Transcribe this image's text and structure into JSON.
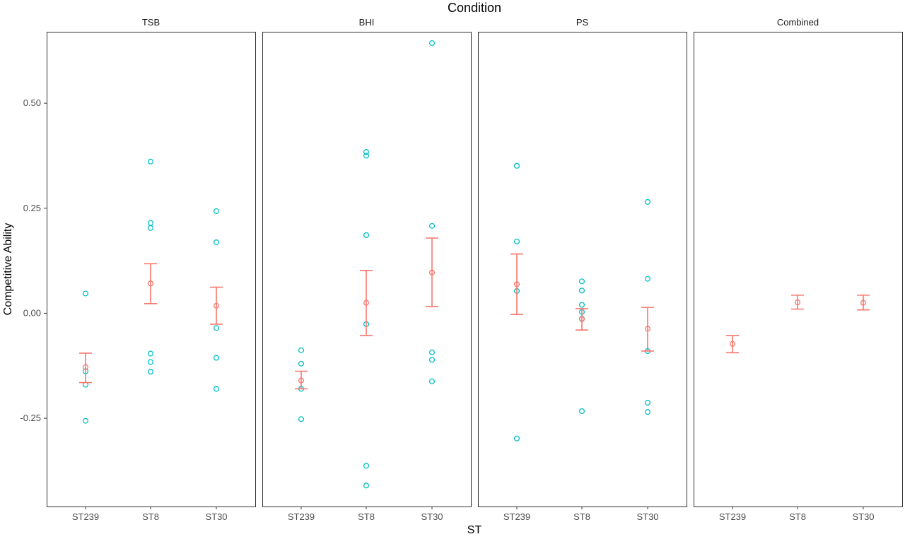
{
  "chart_data": {
    "type": "scatter",
    "title": "Condition",
    "xlabel": "ST",
    "ylabel": "Competitive Ability",
    "ylim": [
      -0.46,
      0.67
    ],
    "y_ticks": [
      {
        "value": -0.25,
        "label": "-0.25"
      },
      {
        "value": 0.0,
        "label": "0.00"
      },
      {
        "value": 0.25,
        "label": "0.25"
      },
      {
        "value": 0.5,
        "label": "0.50"
      }
    ],
    "categories": [
      "ST239",
      "ST8",
      "ST30"
    ],
    "grid": false,
    "legend": "none",
    "colors": {
      "points": "#00BFC4",
      "summary": "#F8766D",
      "panel_border": "#333333",
      "text": "#4d4d4d"
    },
    "panels": [
      {
        "name": "TSB",
        "points": [
          [
            -0.25,
            0.047
          ],
          [
            -0.25,
            -0.138
          ],
          [
            -0.25,
            -0.17
          ],
          [
            -0.25,
            -0.256
          ],
          [
            0,
            0.361
          ],
          [
            0,
            0.215
          ],
          [
            0,
            0.203
          ],
          [
            0,
            -0.096
          ],
          [
            0,
            -0.116
          ],
          [
            0,
            -0.139
          ],
          [
            0.25,
            0.243
          ],
          [
            0.25,
            0.169
          ],
          [
            0.25,
            -0.035
          ],
          [
            0.25,
            -0.106
          ],
          [
            0.25,
            -0.18
          ]
        ],
        "summary": [
          {
            "category": "ST239",
            "mean": -0.128,
            "low": -0.165,
            "high": -0.095
          },
          {
            "category": "ST8",
            "mean": 0.071,
            "low": 0.023,
            "high": 0.118
          },
          {
            "category": "ST30",
            "mean": 0.018,
            "low": -0.026,
            "high": 0.062
          }
        ]
      },
      {
        "name": "BHI",
        "points": [
          [
            -0.25,
            -0.088
          ],
          [
            -0.25,
            -0.12
          ],
          [
            -0.25,
            -0.18
          ],
          [
            -0.25,
            -0.252
          ],
          [
            0,
            0.384
          ],
          [
            0,
            0.375
          ],
          [
            0,
            0.186
          ],
          [
            0,
            -0.026
          ],
          [
            0,
            -0.363
          ],
          [
            0,
            -0.41
          ],
          [
            0.25,
            0.643
          ],
          [
            0.25,
            0.208
          ],
          [
            0.25,
            -0.093
          ],
          [
            0.25,
            -0.111
          ],
          [
            0.25,
            -0.162
          ]
        ],
        "summary": [
          {
            "category": "ST239",
            "mean": -0.16,
            "low": -0.18,
            "high": -0.138
          },
          {
            "category": "ST8",
            "mean": 0.025,
            "low": -0.053,
            "high": 0.102
          },
          {
            "category": "ST30",
            "mean": 0.097,
            "low": 0.016,
            "high": 0.179
          }
        ]
      },
      {
        "name": "PS",
        "points": [
          [
            -0.25,
            0.351
          ],
          [
            -0.25,
            0.171
          ],
          [
            -0.25,
            0.053
          ],
          [
            -0.25,
            -0.298
          ],
          [
            0,
            0.076
          ],
          [
            0,
            0.054
          ],
          [
            0,
            0.02
          ],
          [
            0,
            0.003
          ],
          [
            0,
            -0.013
          ],
          [
            0,
            -0.233
          ],
          [
            0.25,
            0.265
          ],
          [
            0.25,
            0.082
          ],
          [
            0.25,
            -0.09
          ],
          [
            0.25,
            -0.213
          ],
          [
            0.25,
            -0.235
          ]
        ],
        "summary": [
          {
            "category": "ST239",
            "mean": 0.069,
            "low": -0.003,
            "high": 0.141
          },
          {
            "category": "ST8",
            "mean": -0.014,
            "low": -0.04,
            "high": 0.011
          },
          {
            "category": "ST30",
            "mean": -0.037,
            "low": -0.09,
            "high": 0.014
          }
        ]
      },
      {
        "name": "Combined",
        "points": [],
        "summary": [
          {
            "category": "ST239",
            "mean": -0.073,
            "low": -0.094,
            "high": -0.053
          },
          {
            "category": "ST8",
            "mean": 0.026,
            "low": 0.01,
            "high": 0.043
          },
          {
            "category": "ST30",
            "mean": 0.025,
            "low": 0.008,
            "high": 0.043
          }
        ]
      }
    ]
  }
}
